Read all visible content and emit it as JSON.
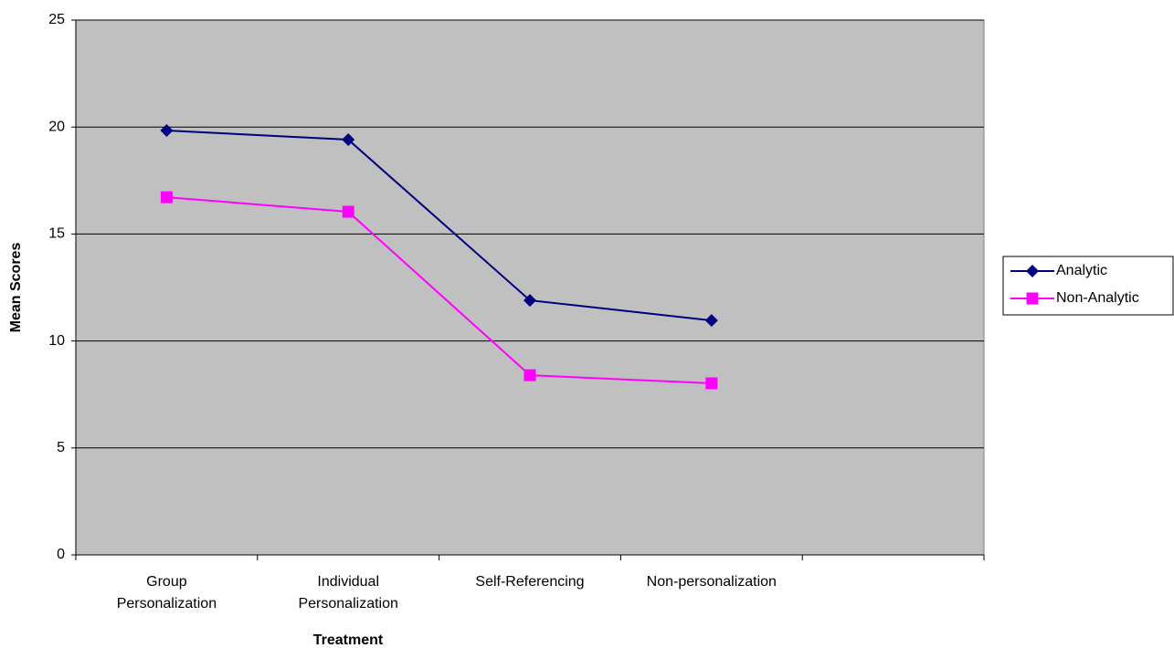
{
  "chart_data": {
    "type": "line",
    "x_label": "Treatment",
    "y_label": "Mean Scores",
    "categories": [
      "Group Personalization",
      "Individual Personalization",
      "Self-Referencing",
      "Non-personalization",
      null
    ],
    "series": [
      {
        "name": "Analytic",
        "color": "#000080",
        "marker": "diamond",
        "values": [
          19.84,
          19.41,
          11.9,
          10.96,
          null
        ]
      },
      {
        "name": "Non-Analytic",
        "color": "#ff00ff",
        "marker": "square",
        "values": [
          16.72,
          16.04,
          8.4,
          8.02,
          null
        ]
      }
    ],
    "ylim": [
      0,
      25
    ],
    "yticks": [
      0,
      5,
      10,
      15,
      20,
      25
    ],
    "grid": true,
    "legend": "right",
    "plot_color": "#c0c0c0"
  }
}
